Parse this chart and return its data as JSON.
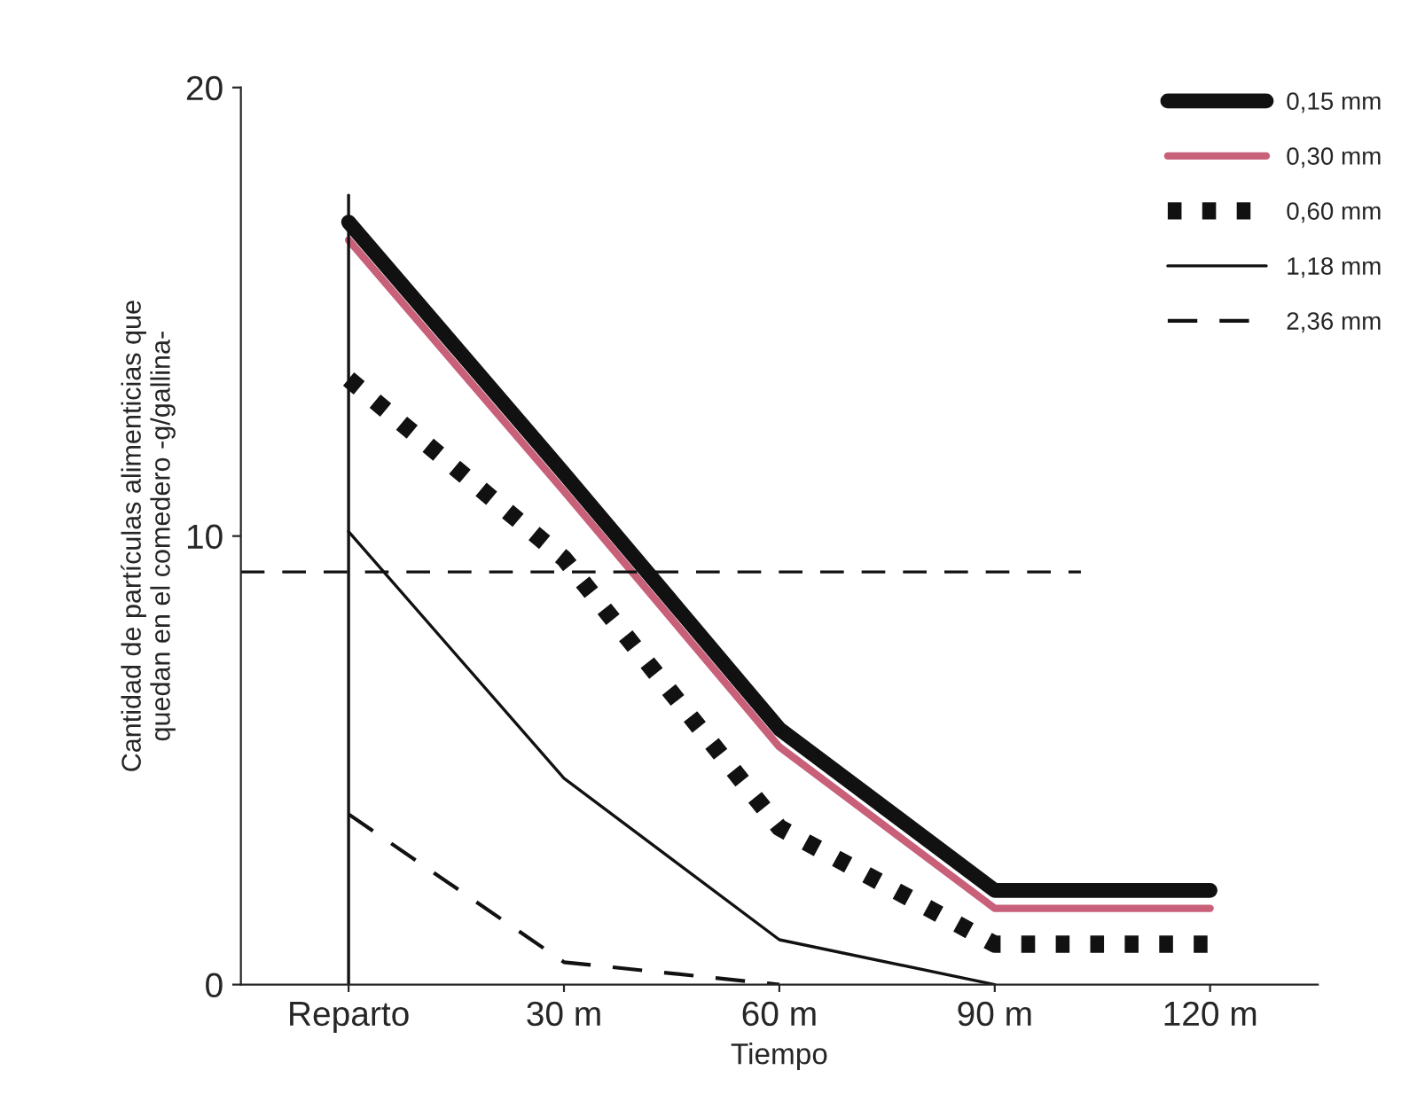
{
  "chart_data": {
    "type": "line",
    "xlabel": "Tiempo",
    "ylabel": "Cantidad de partículas alimenticias que\nquedan en el comedero -g/gallina-",
    "x": [
      0,
      30,
      60,
      90,
      120
    ],
    "xlim": [
      -15,
      135
    ],
    "xticks": [
      {
        "value": 0,
        "label": "Reparto"
      },
      {
        "value": 30,
        "label": "30 m"
      },
      {
        "value": 60,
        "label": "60 m"
      },
      {
        "value": 90,
        "label": "90 m"
      },
      {
        "value": 120,
        "label": "120 m"
      }
    ],
    "ylim": [
      0,
      20
    ],
    "yticks": [
      0,
      10,
      20
    ],
    "series": [
      {
        "name": "0,15 mm",
        "color": "#111111",
        "line_style": "solid",
        "values": [
          17.0,
          11.4,
          5.7,
          2.1,
          2.1
        ]
      },
      {
        "name": "0,30 mm",
        "color": "#c8607a",
        "line_style": "solid",
        "values": [
          16.6,
          11.0,
          5.3,
          1.7,
          1.7
        ]
      },
      {
        "name": "0,60 mm",
        "color": "#111111",
        "line_style": "dotted",
        "values": [
          13.5,
          9.5,
          3.5,
          0.9,
          0.9
        ]
      },
      {
        "name": "1,18 mm",
        "color": "#111111",
        "line_style": "solid",
        "values": [
          10.1,
          4.6,
          1.0,
          0.0,
          null
        ]
      },
      {
        "name": "2,36 mm",
        "color": "#111111",
        "line_style": "dashed",
        "values": [
          3.8,
          0.5,
          0.0,
          null,
          null
        ]
      }
    ],
    "ref_lines": [
      {
        "axis": "y",
        "value": 9.2,
        "line_style": "dashed",
        "color": "#111111"
      },
      {
        "axis": "x",
        "value": 0,
        "line_style": "solid",
        "color": "#111111"
      }
    ],
    "legend": "top right",
    "grid": false,
    "marker": "none"
  }
}
